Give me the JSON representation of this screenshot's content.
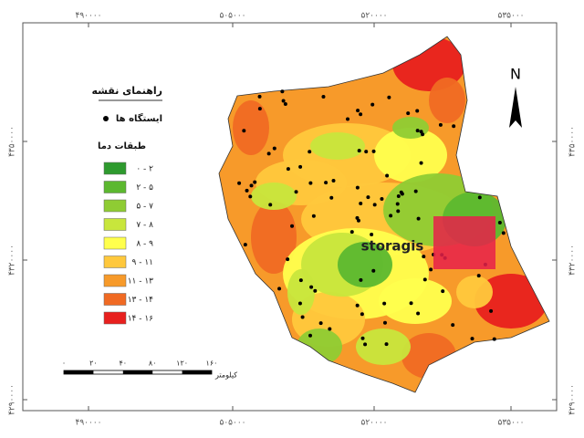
{
  "legend": {
    "title": "راهنمای نقشه",
    "stations": "ایستگاه ها",
    "classes_title": "طبقات دما",
    "classes": [
      {
        "label": "۰ - ۲",
        "color": "#2e9a2e"
      },
      {
        "label": "۲ - ۵",
        "color": "#5cb82f"
      },
      {
        "label": "۵ - ۷",
        "color": "#8fcc33"
      },
      {
        "label": "۷ - ۸",
        "color": "#c8e63c"
      },
      {
        "label": "۸ - ۹",
        "color": "#ffff4d"
      },
      {
        "label": "۹ - ۱۱",
        "color": "#ffc83c"
      },
      {
        "label": "۱۱ - ۱۳",
        "color": "#f79a2a"
      },
      {
        "label": "۱۳ - ۱۴",
        "color": "#f06a23"
      },
      {
        "label": "۱۴ - ۱۶",
        "color": "#e8201e"
      }
    ]
  },
  "scale_bar": {
    "labels": [
      "۰",
      "۲۰",
      "۴۰",
      "۸۰",
      "۱۲۰",
      "۱۶۰"
    ],
    "unit": "کیلومتر"
  },
  "grid": {
    "top": [
      "۴۹۰۰۰۰",
      "۵۰۵۰۰۰",
      "۵۲۰۰۰۰",
      "۵۳۵۰۰۰"
    ],
    "bottom": [
      "۴۹۰۰۰۰",
      "۵۰۵۰۰۰",
      "۵۲۰۰۰۰",
      "۵۳۵۰۰۰"
    ],
    "left": [
      "۴۳۵۰۰۰۰",
      "۴۳۲۰۰۰۰",
      "۴۲۹۰۰۰۰"
    ],
    "right": [
      "۴۳۵۰۰۰۰",
      "۴۳۲۰۰۰۰",
      "۴۲۹۰۰۰۰"
    ]
  },
  "north": "N",
  "watermark": "storagis"
}
